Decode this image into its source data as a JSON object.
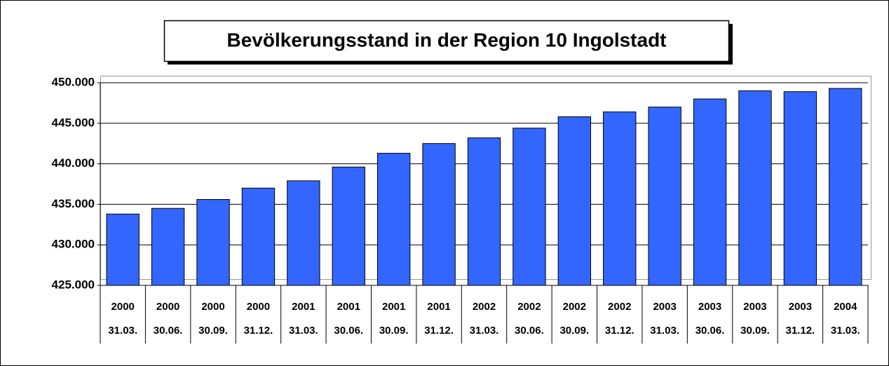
{
  "chart_data": {
    "type": "bar",
    "title": "Bevölkerungsstand in der Region 10 Ingolstadt",
    "categories": [
      "31.03.",
      "30.06.",
      "30.09.",
      "31.12.",
      "31.03.",
      "30.06.",
      "30.09.",
      "31.12.",
      "31.03.",
      "30.06.",
      "30.09.",
      "31.12.",
      "31.03.",
      "30.06.",
      "30.09.",
      "31.12.",
      "31.03."
    ],
    "category_groups": [
      "2000",
      "2000",
      "2000",
      "2000",
      "2001",
      "2001",
      "2001",
      "2001",
      "2002",
      "2002",
      "2002",
      "2002",
      "2003",
      "2003",
      "2003",
      "2003",
      "2004"
    ],
    "values": [
      433800,
      434500,
      435600,
      437000,
      437900,
      439600,
      441300,
      442500,
      443200,
      444400,
      445800,
      446400,
      447000,
      448000,
      449000,
      448900,
      449300
    ],
    "color": "#3366ff",
    "ylim": [
      425000,
      450000
    ],
    "yticks": [
      {
        "value": 425000,
        "label": "425.000"
      },
      {
        "value": 430000,
        "label": "430.000"
      },
      {
        "value": 435000,
        "label": "435.000"
      },
      {
        "value": 440000,
        "label": "440.000"
      },
      {
        "value": 445000,
        "label": "445.000"
      },
      {
        "value": 450000,
        "label": "450.000"
      }
    ],
    "grid": true
  }
}
